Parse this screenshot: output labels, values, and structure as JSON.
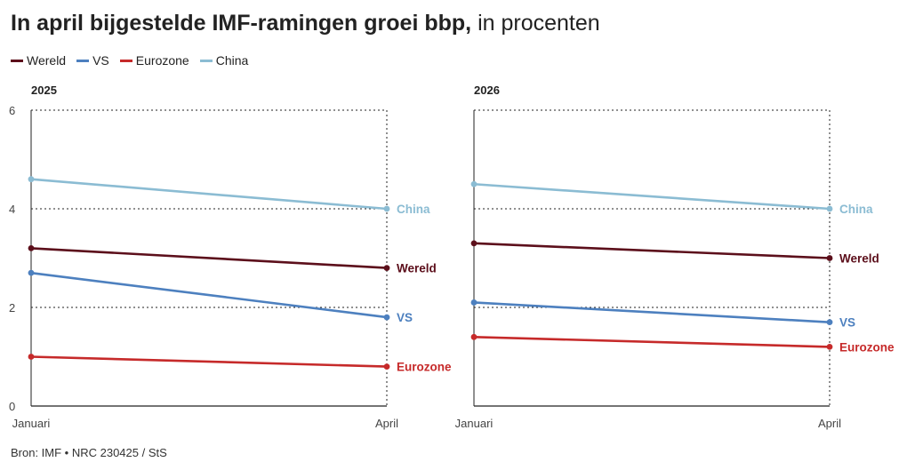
{
  "title": {
    "bold": "In april bijgestelde IMF-ramingen groei bbp,",
    "light": "in procenten"
  },
  "source": "Bron: IMF • NRC 230425 / StS",
  "colors": {
    "Wereld": "#5c0f1b",
    "VS": "#4d80bf",
    "Eurozone": "#c62a2a",
    "China": "#8bbcd3"
  },
  "legend": [
    "Wereld",
    "VS",
    "Eurozone",
    "China"
  ],
  "chart_data": [
    {
      "type": "line",
      "title": "2025",
      "categories": [
        "Januari",
        "April"
      ],
      "ylim": [
        0,
        6
      ],
      "yticks": [
        0,
        2,
        4,
        6
      ],
      "grid": true,
      "series": [
        {
          "name": "China",
          "values": [
            4.6,
            4.0
          ]
        },
        {
          "name": "Wereld",
          "values": [
            3.2,
            2.8
          ]
        },
        {
          "name": "VS",
          "values": [
            2.7,
            1.8
          ]
        },
        {
          "name": "Eurozone",
          "values": [
            1.0,
            0.8
          ]
        }
      ]
    },
    {
      "type": "line",
      "title": "2026",
      "categories": [
        "Januari",
        "April"
      ],
      "ylim": [
        0,
        6
      ],
      "yticks": [
        0,
        2,
        4,
        6
      ],
      "grid": true,
      "series": [
        {
          "name": "China",
          "values": [
            4.5,
            4.0
          ]
        },
        {
          "name": "Wereld",
          "values": [
            3.3,
            3.0
          ]
        },
        {
          "name": "VS",
          "values": [
            2.1,
            1.7
          ]
        },
        {
          "name": "Eurozone",
          "values": [
            1.4,
            1.2
          ]
        }
      ]
    }
  ]
}
